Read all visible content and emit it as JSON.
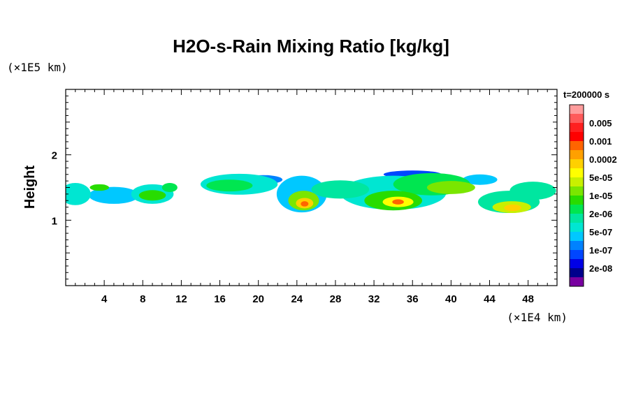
{
  "chart_data": {
    "type": "heatmap",
    "title": "H2O-s-Rain Mixing Ratio [kg/kg]",
    "ylabel": "Height",
    "xunit": "(×1E4 km)",
    "yunit": "(×1E5 km)",
    "time_label": "t=200000 s",
    "xlim": [
      0,
      51
    ],
    "ylim": [
      0,
      3
    ],
    "xticks": [
      4,
      8,
      12,
      16,
      20,
      24,
      28,
      32,
      36,
      40,
      44,
      48
    ],
    "xtick_labels": [
      "4",
      "8",
      "12",
      "16",
      "20",
      "24",
      "28",
      "32",
      "36",
      "40",
      "44",
      "48"
    ],
    "yticks": [
      1,
      2
    ],
    "ytick_labels": [
      "1",
      "2"
    ],
    "grid": false,
    "colorbar": {
      "position": "right",
      "levels": [
        {
          "label": "",
          "color": "#ff9c9c"
        },
        {
          "label": "0.005",
          "color": "#ff5a5a"
        },
        {
          "label": "",
          "color": "#ff2020"
        },
        {
          "label": "0.001",
          "color": "#ff0000"
        },
        {
          "label": "",
          "color": "#ff6400"
        },
        {
          "label": "0.0002",
          "color": "#ffa000"
        },
        {
          "label": "",
          "color": "#ffd000"
        },
        {
          "label": "5e-05",
          "color": "#ffff00"
        },
        {
          "label": "",
          "color": "#c8f000"
        },
        {
          "label": "1e-05",
          "color": "#7ae600"
        },
        {
          "label": "",
          "color": "#28dc00"
        },
        {
          "label": "2e-06",
          "color": "#00e650"
        },
        {
          "label": "",
          "color": "#00e6a0"
        },
        {
          "label": "5e-07",
          "color": "#00e6d2"
        },
        {
          "label": "",
          "color": "#00c8ff"
        },
        {
          "label": "1e-07",
          "color": "#0082ff"
        },
        {
          "label": "",
          "color": "#0046ff"
        },
        {
          "label": "2e-08",
          "color": "#0000e6"
        },
        {
          "label": "",
          "color": "#00008c"
        },
        {
          "label": "",
          "color": "#7800a0"
        }
      ]
    },
    "field_blobs": [
      {
        "x": 1.0,
        "y": 1.4,
        "rx": 1.6,
        "ry": 0.17,
        "level": 13
      },
      {
        "x": 5.0,
        "y": 1.38,
        "rx": 2.6,
        "ry": 0.13,
        "level": 14
      },
      {
        "x": 9.0,
        "y": 1.4,
        "rx": 2.2,
        "ry": 0.15,
        "level": 13
      },
      {
        "x": 9.0,
        "y": 1.38,
        "rx": 1.4,
        "ry": 0.08,
        "level": 10
      },
      {
        "x": 10.8,
        "y": 1.5,
        "rx": 0.8,
        "ry": 0.07,
        "level": 11
      },
      {
        "x": 3.5,
        "y": 1.5,
        "rx": 1.0,
        "ry": 0.05,
        "level": 10
      },
      {
        "x": 18.0,
        "y": 1.55,
        "rx": 4.0,
        "ry": 0.16,
        "level": 13
      },
      {
        "x": 17.0,
        "y": 1.53,
        "rx": 2.4,
        "ry": 0.09,
        "level": 11
      },
      {
        "x": 20.5,
        "y": 1.62,
        "rx": 2.0,
        "ry": 0.07,
        "level": 15
      },
      {
        "x": 24.5,
        "y": 1.4,
        "rx": 2.6,
        "ry": 0.28,
        "level": 14
      },
      {
        "x": 24.7,
        "y": 1.3,
        "rx": 1.6,
        "ry": 0.15,
        "level": 9
      },
      {
        "x": 24.8,
        "y": 1.26,
        "rx": 0.9,
        "ry": 0.08,
        "level": 6
      },
      {
        "x": 24.8,
        "y": 1.25,
        "rx": 0.4,
        "ry": 0.04,
        "level": 4
      },
      {
        "x": 28.5,
        "y": 1.47,
        "rx": 3.0,
        "ry": 0.14,
        "level": 12
      },
      {
        "x": 34.0,
        "y": 1.42,
        "rx": 5.5,
        "ry": 0.26,
        "level": 13
      },
      {
        "x": 34.0,
        "y": 1.3,
        "rx": 3.0,
        "ry": 0.15,
        "level": 10
      },
      {
        "x": 34.5,
        "y": 1.28,
        "rx": 1.6,
        "ry": 0.08,
        "level": 7
      },
      {
        "x": 34.5,
        "y": 1.28,
        "rx": 0.6,
        "ry": 0.04,
        "level": 4
      },
      {
        "x": 38.0,
        "y": 1.55,
        "rx": 4.0,
        "ry": 0.17,
        "level": 11
      },
      {
        "x": 40.0,
        "y": 1.5,
        "rx": 2.5,
        "ry": 0.1,
        "level": 9
      },
      {
        "x": 36.0,
        "y": 1.7,
        "rx": 3.0,
        "ry": 0.06,
        "level": 16
      },
      {
        "x": 46.0,
        "y": 1.28,
        "rx": 3.2,
        "ry": 0.17,
        "level": 12
      },
      {
        "x": 46.3,
        "y": 1.2,
        "rx": 2.0,
        "ry": 0.09,
        "level": 8
      },
      {
        "x": 46.4,
        "y": 1.19,
        "rx": 0.9,
        "ry": 0.05,
        "level": 6
      },
      {
        "x": 48.5,
        "y": 1.45,
        "rx": 2.4,
        "ry": 0.14,
        "level": 12
      },
      {
        "x": 43.0,
        "y": 1.62,
        "rx": 1.8,
        "ry": 0.08,
        "level": 14
      }
    ]
  }
}
